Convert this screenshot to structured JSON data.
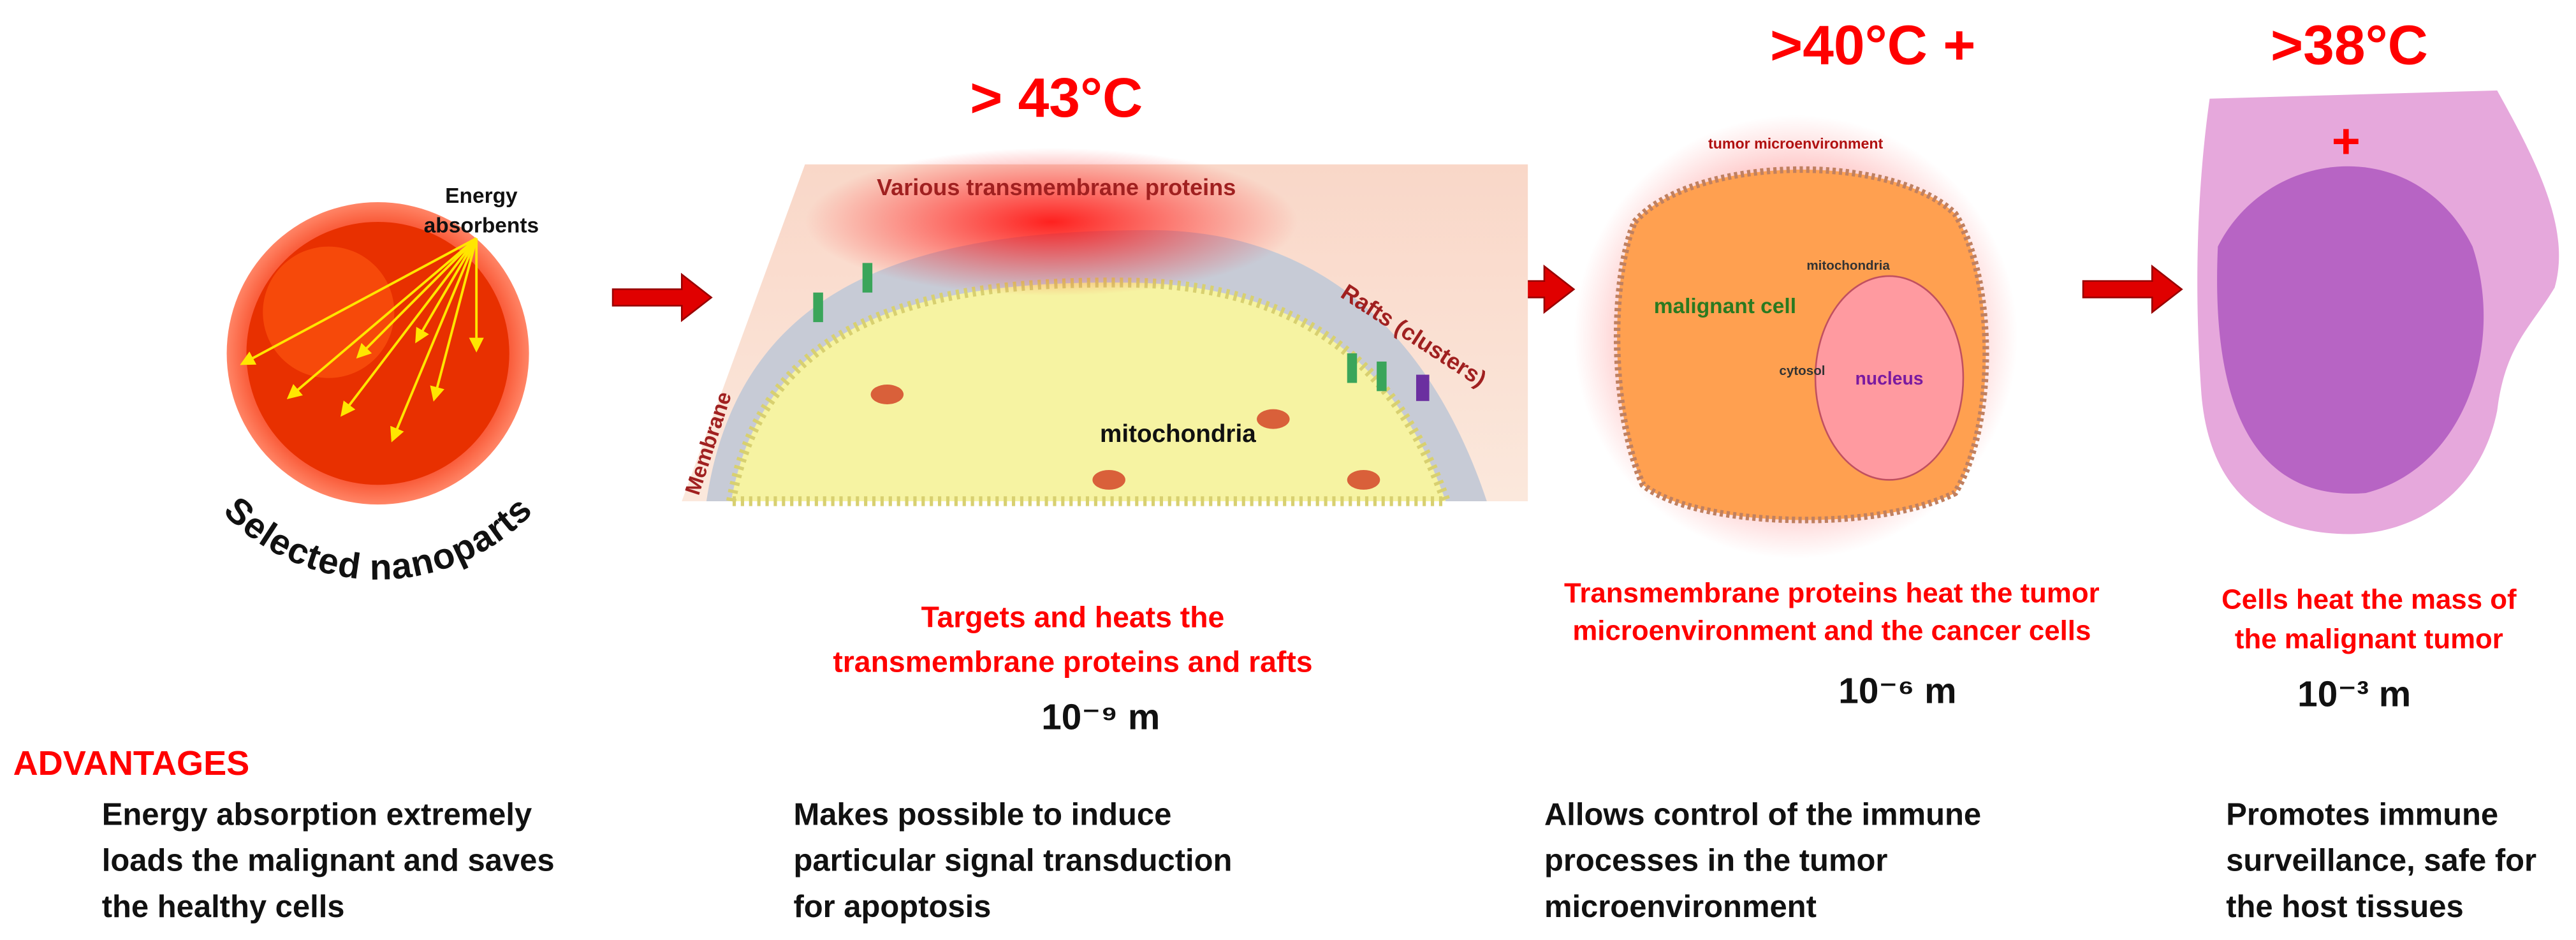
{
  "nanoparticle": {
    "label": "Selected nanoparts",
    "annotation": [
      "Energy",
      "absorbents"
    ]
  },
  "stages": [
    {
      "temperature": "> 43°C",
      "labels": {
        "proteins": "Various transmembrane proteins",
        "rafts": "Rafts (clusters)",
        "membrane": "Membrane",
        "mitochondria": "mitochondria"
      },
      "description": [
        "Targets and heats the",
        "transmembrane proteins and  rafts"
      ],
      "scale": "10⁻⁹ m"
    },
    {
      "temperature": ">40°C +",
      "labels": {
        "environment": "tumor microenvironment",
        "cell": "malignant cell",
        "mitochondria": "mitochondria",
        "cytosol": "cytosol",
        "nucleus": "nucleus"
      },
      "description": [
        "Transmembrane proteins  heat the tumor",
        "microenvironment and the cancer cells"
      ],
      "scale": "10⁻⁶ m"
    },
    {
      "temperature": ">38°C",
      "marker": "+",
      "description": [
        "Cells heat the mass of",
        "the malignant tumor"
      ],
      "scale": "10⁻³ m"
    }
  ],
  "advantages": {
    "title": "ADVANTAGES",
    "items": [
      [
        "Energy absorption extremely",
        "loads the malignant and saves",
        "the healthy cells"
      ],
      [
        "Makes possible to induce",
        "particular signal transduction",
        "for apoptosis"
      ],
      [
        "Allows control of the immune",
        "processes in the tumor",
        "microenvironment"
      ],
      [
        "Promotes immune",
        "surveillance, safe for",
        "the host tissues"
      ]
    ]
  }
}
